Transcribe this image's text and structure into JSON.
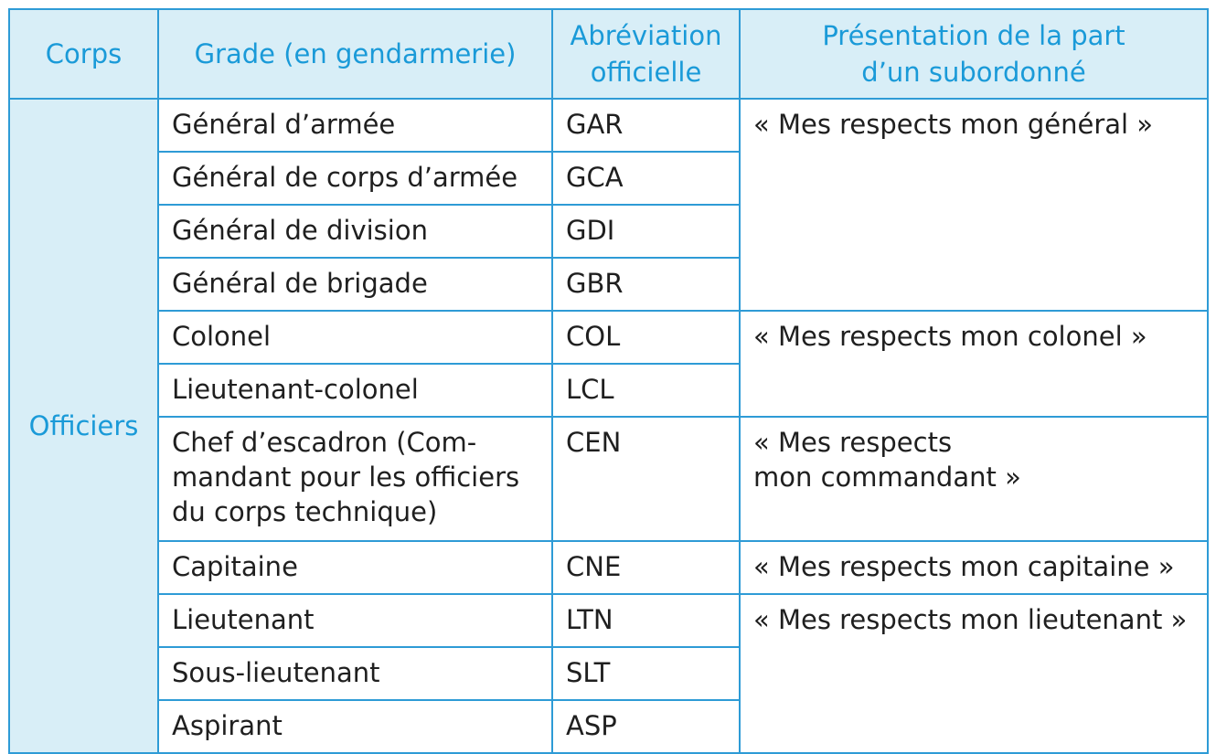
{
  "headers": {
    "corps": "Corps",
    "grade": "Grade (en gendarmerie)",
    "abbr_line1": "Abréviation",
    "abbr_line2": "officielle",
    "pres_line1": "Présentation de la part",
    "pres_line2": "d’un subordonné"
  },
  "corps_label": "Officiers",
  "rows": [
    {
      "grade": "Général d’armée",
      "abbr": "GAR"
    },
    {
      "grade": "Général de corps d’armée",
      "abbr": "GCA"
    },
    {
      "grade": "Général de division",
      "abbr": "GDI"
    },
    {
      "grade": "Général de brigade",
      "abbr": "GBR"
    },
    {
      "grade": "Colonel",
      "abbr": "COL"
    },
    {
      "grade": "Lieutenant-colonel",
      "abbr": "LCL"
    },
    {
      "grade_line1": "Chef d’escadron (Com-",
      "grade_line2": "mandant pour les officiers",
      "grade_line3": "du corps technique)",
      "abbr": "CEN"
    },
    {
      "grade": "Capitaine",
      "abbr": "CNE"
    },
    {
      "grade": "Lieutenant",
      "abbr": "LTN"
    },
    {
      "grade": "Sous-lieutenant",
      "abbr": "SLT"
    },
    {
      "grade": "Aspirant",
      "abbr": "ASP"
    }
  ],
  "presentations": {
    "general": "« Mes respects mon général »",
    "colonel": "« Mes respects mon colonel »",
    "commandant_line1": "« Mes respects",
    "commandant_line2": "mon commandant »",
    "capitaine": "« Mes respects mon capitaine »",
    "lieutenant": "« Mes respects mon lieutenant »"
  }
}
